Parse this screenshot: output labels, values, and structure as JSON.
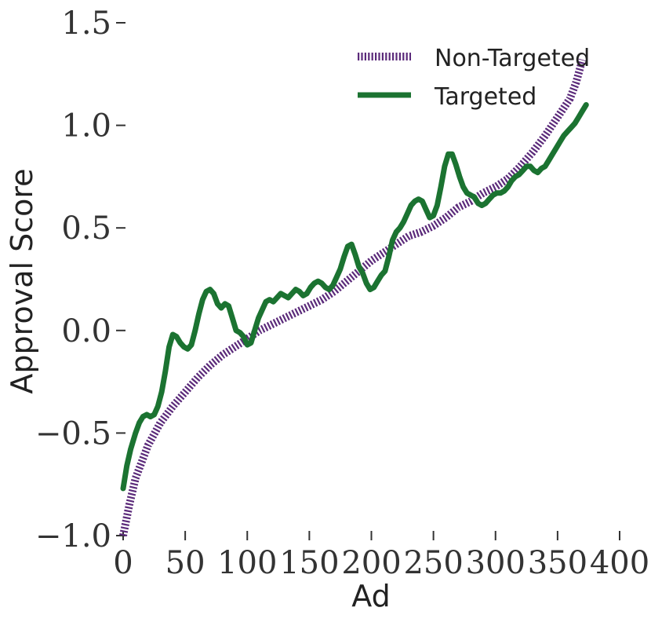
{
  "chart_data": {
    "type": "line",
    "xlabel": "Ad",
    "ylabel": "Approval Score",
    "xlim": [
      0,
      400
    ],
    "ylim": [
      -1.0,
      1.5
    ],
    "xticks": [
      0,
      50,
      100,
      150,
      200,
      250,
      300,
      350,
      400
    ],
    "yticks": [
      -1.0,
      -0.5,
      0.0,
      0.5,
      1.0,
      1.5
    ],
    "xtick_labels": [
      "0",
      "50",
      "100",
      "150",
      "200",
      "250",
      "300",
      "350",
      "400"
    ],
    "ytick_labels": [
      "−1.0",
      "−0.5",
      "0.0",
      "0.5",
      "1.0",
      "1.5"
    ],
    "grid": false,
    "legend_position": "top-right",
    "series": [
      {
        "name": "Non-Targeted",
        "color": "#5b2a7a",
        "style": "dotted",
        "x": [
          0,
          5,
          10,
          20,
          30,
          40,
          50,
          60,
          70,
          80,
          90,
          100,
          110,
          120,
          130,
          140,
          150,
          160,
          170,
          180,
          190,
          200,
          210,
          220,
          230,
          240,
          250,
          260,
          270,
          280,
          290,
          300,
          310,
          320,
          330,
          340,
          350,
          360,
          365,
          370
        ],
        "values": [
          -1.0,
          -0.85,
          -0.72,
          -0.56,
          -0.45,
          -0.37,
          -0.3,
          -0.23,
          -0.17,
          -0.12,
          -0.08,
          -0.04,
          0.0,
          0.03,
          0.06,
          0.09,
          0.12,
          0.15,
          0.19,
          0.24,
          0.29,
          0.34,
          0.38,
          0.42,
          0.46,
          0.48,
          0.51,
          0.55,
          0.6,
          0.63,
          0.67,
          0.7,
          0.74,
          0.8,
          0.87,
          0.95,
          1.04,
          1.13,
          1.21,
          1.32
        ]
      },
      {
        "name": "Targeted",
        "color": "#1b7331",
        "style": "solid",
        "x": [
          0,
          3,
          6,
          10,
          13,
          16,
          19,
          22,
          25,
          28,
          31,
          34,
          37,
          40,
          43,
          46,
          49,
          52,
          55,
          58,
          61,
          64,
          67,
          70,
          73,
          76,
          79,
          82,
          85,
          88,
          91,
          94,
          97,
          100,
          103,
          106,
          109,
          112,
          115,
          118,
          121,
          124,
          127,
          130,
          133,
          136,
          139,
          142,
          145,
          148,
          151,
          154,
          157,
          160,
          163,
          166,
          169,
          172,
          175,
          178,
          181,
          184,
          187,
          190,
          193,
          196,
          199,
          202,
          205,
          208,
          211,
          214,
          217,
          220,
          223,
          226,
          229,
          232,
          235,
          238,
          241,
          244,
          247,
          250,
          253,
          256,
          259,
          262,
          265,
          268,
          271,
          274,
          277,
          280,
          283,
          286,
          289,
          292,
          295,
          298,
          301,
          304,
          307,
          310,
          313,
          316,
          319,
          322,
          325,
          328,
          331,
          334,
          337,
          340,
          343,
          346,
          349,
          352,
          355,
          358,
          361,
          364,
          367,
          370,
          373
        ],
        "values": [
          -0.77,
          -0.66,
          -0.58,
          -0.5,
          -0.45,
          -0.42,
          -0.41,
          -0.42,
          -0.41,
          -0.37,
          -0.3,
          -0.2,
          -0.08,
          -0.02,
          -0.03,
          -0.06,
          -0.08,
          -0.09,
          -0.07,
          0.0,
          0.08,
          0.15,
          0.19,
          0.2,
          0.18,
          0.13,
          0.11,
          0.13,
          0.12,
          0.06,
          0.0,
          -0.01,
          -0.03,
          -0.07,
          -0.06,
          0.0,
          0.06,
          0.1,
          0.14,
          0.15,
          0.14,
          0.16,
          0.18,
          0.17,
          0.16,
          0.18,
          0.2,
          0.19,
          0.17,
          0.18,
          0.21,
          0.23,
          0.24,
          0.23,
          0.21,
          0.2,
          0.22,
          0.26,
          0.3,
          0.36,
          0.41,
          0.42,
          0.37,
          0.31,
          0.28,
          0.23,
          0.2,
          0.21,
          0.24,
          0.27,
          0.29,
          0.36,
          0.44,
          0.48,
          0.5,
          0.53,
          0.57,
          0.61,
          0.63,
          0.64,
          0.63,
          0.59,
          0.55,
          0.56,
          0.61,
          0.7,
          0.8,
          0.86,
          0.86,
          0.81,
          0.75,
          0.7,
          0.67,
          0.66,
          0.65,
          0.62,
          0.61,
          0.62,
          0.64,
          0.66,
          0.67,
          0.67,
          0.68,
          0.7,
          0.73,
          0.75,
          0.76,
          0.78,
          0.8,
          0.8,
          0.78,
          0.77,
          0.79,
          0.8,
          0.83,
          0.86,
          0.89,
          0.92,
          0.95,
          0.97,
          0.99,
          1.01,
          1.04,
          1.07,
          1.1
        ]
      }
    ]
  }
}
